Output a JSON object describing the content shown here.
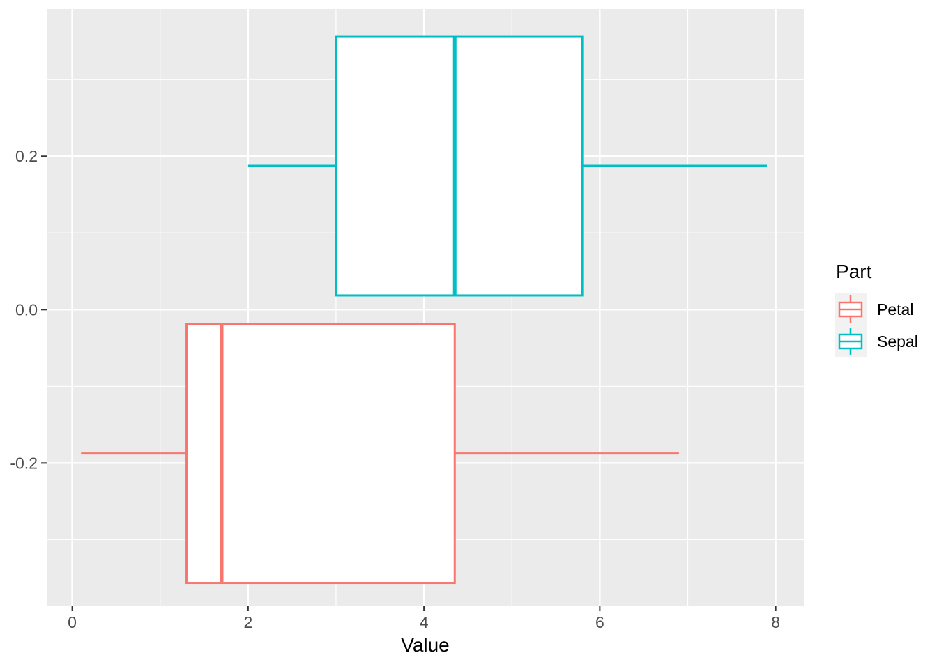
{
  "chart_data": {
    "type": "boxplot",
    "orientation": "horizontal",
    "title": "",
    "xlabel": "Value",
    "ylabel": "",
    "x_axis": {
      "major_ticks": [
        0,
        2,
        4,
        6,
        8
      ],
      "major_tick_labels": [
        "0",
        "2",
        "4",
        "6",
        "8"
      ],
      "minor_ticks": [
        1,
        3,
        5,
        7
      ],
      "range": [
        -0.29,
        8.32
      ]
    },
    "y_axis": {
      "major_ticks": [
        -0.2,
        0.0,
        0.2
      ],
      "major_tick_labels": [
        "-0.2",
        "0.0",
        "0.2"
      ],
      "minor_ticks": [
        -0.3,
        -0.1,
        0.1,
        0.3
      ],
      "range": [
        -0.386,
        0.392
      ]
    },
    "series": [
      {
        "name": "Petal",
        "color": "#F8766D",
        "fill": "#FFFFFF",
        "center_y": -0.1875,
        "box_half_height": 0.169,
        "whisker_low": 0.1,
        "q1": 1.3,
        "median": 1.7,
        "q3": 4.35,
        "whisker_high": 6.9
      },
      {
        "name": "Sepal",
        "color": "#00BFC4",
        "fill": "#FFFFFF",
        "center_y": 0.1875,
        "box_half_height": 0.169,
        "whisker_low": 2.0,
        "q1": 3.0,
        "median": 4.35,
        "q3": 5.8,
        "whisker_high": 7.9
      }
    ],
    "legend": {
      "title": "Part",
      "position": "right",
      "entries": [
        {
          "label": "Petal",
          "color": "#F8766D"
        },
        {
          "label": "Sepal",
          "color": "#00BFC4"
        }
      ]
    },
    "style": {
      "panel_bg": "#EBEBEB",
      "grid_color": "#FFFFFF",
      "tick_mark_color": "#333333",
      "axis_text_color": "#4D4D4D",
      "legend_key_bg": "#F2F2F2",
      "grid_on": true
    }
  }
}
